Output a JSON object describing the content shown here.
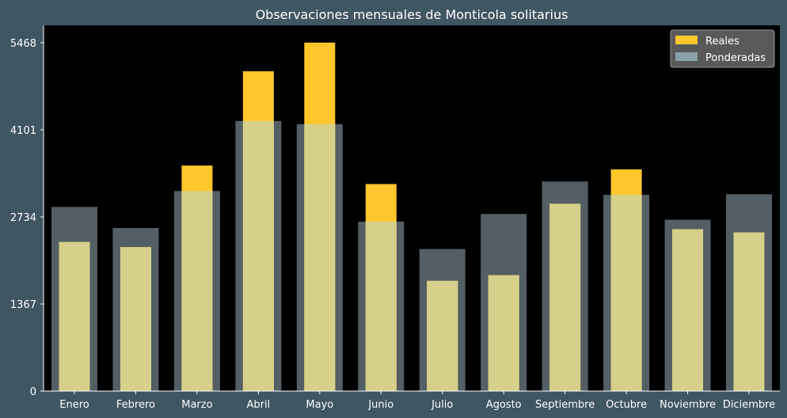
{
  "chart_data": {
    "type": "bar",
    "title": "Observaciones mensuales de Monticola solitarius",
    "xlabel": "",
    "ylabel": "",
    "categories": [
      "Enero",
      "Febrero",
      "Marzo",
      "Abril",
      "Mayo",
      "Junio",
      "Julio",
      "Agosto",
      "Septiembre",
      "Octubre",
      "Noviembre",
      "Diciembre"
    ],
    "yticks": [
      0,
      1367,
      2734,
      4101,
      5468
    ],
    "ylim": [
      0,
      5741
    ],
    "grid": false,
    "legend_position": "top-right",
    "series": [
      {
        "name": "Reales",
        "color": "#ffc72c",
        "values": [
          2340,
          2260,
          3540,
          5020,
          5470,
          3250,
          1730,
          1820,
          2940,
          3480,
          2540,
          2490
        ]
      },
      {
        "name": "Ponderadas",
        "color": "#8a9fa6",
        "values": [
          2890,
          2560,
          3140,
          4240,
          4190,
          2660,
          2230,
          2780,
          3290,
          3080,
          2690,
          3090
        ]
      }
    ],
    "colors": {
      "page_background": "#3f5663",
      "plot_background": "#000000",
      "text": "#ffffff",
      "overlap": "#d6d08b"
    }
  }
}
